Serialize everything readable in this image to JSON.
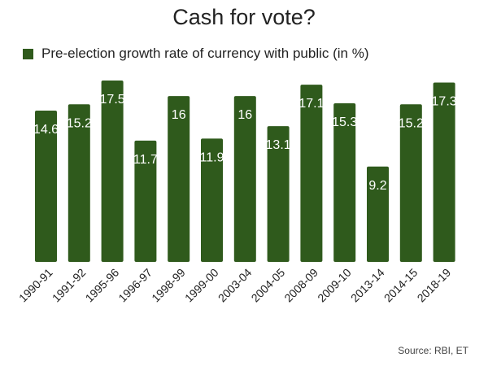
{
  "chart_data": {
    "type": "bar",
    "title": "Cash for vote?",
    "categories": [
      "1990-91",
      "1991-92",
      "1995-96",
      "1996-97",
      "1998-99",
      "1999-00",
      "2003-04",
      "2004-05",
      "2008-09",
      "2009-10",
      "2013-14",
      "2014-15",
      "2018-19"
    ],
    "series": [
      {
        "name": "Pre-election growth rate of currency with public (in %)",
        "values": [
          14.6,
          15.2,
          17.5,
          11.7,
          16,
          11.9,
          16,
          13.1,
          17.1,
          15.3,
          9.2,
          15.2,
          17.3
        ],
        "labels": [
          "14.6",
          "15.2",
          "17.5",
          "11.7",
          "16",
          "11.9",
          "16",
          "13.1",
          "17.1",
          "15.3",
          "9.2",
          "15.2",
          "17.3"
        ],
        "color": "#2f5a1c"
      }
    ],
    "xlabel": "",
    "ylabel": "",
    "ylim": [
      0,
      17.5
    ],
    "grid": false,
    "legend": "top-left",
    "data_labels": "inside-top",
    "source": "Source: RBI, ET"
  }
}
